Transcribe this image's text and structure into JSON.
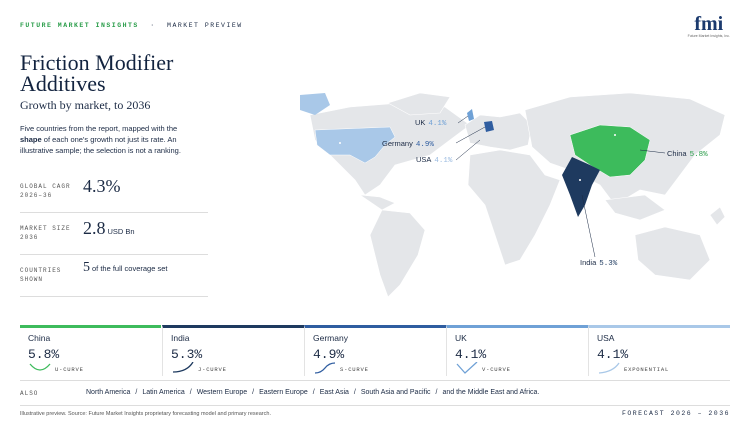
{
  "header": {
    "brand": "FUTURE MARKET INSIGHTS",
    "separator": "·",
    "section": "MARKET PREVIEW",
    "logo": "fmi",
    "logo_sub": "Future Market Insights, Inc."
  },
  "title": "Friction Modifier Additives",
  "subtitle": "Growth by market, to 2036",
  "intro": {
    "before": "Five countries from the report, mapped with the",
    "emphasis": "shape",
    "after": "of each one's growth not just its rate. An illustrative sample; the selection is not a ranking."
  },
  "stats": [
    {
      "label": [
        "GLOBAL CAGR",
        "2026–36"
      ],
      "value": "4.3%"
    },
    {
      "label": [
        "MARKET SIZE",
        "2036"
      ],
      "value": "2.8",
      "unit": "USD Bn"
    },
    {
      "label": [
        "COUNTRIES",
        "SHOWN"
      ],
      "value": "5",
      "unit": "of the full coverage set"
    }
  ],
  "map_labels": [
    {
      "country": "UK",
      "rate": "4.1%"
    },
    {
      "country": "Germany",
      "rate": "4.9%"
    },
    {
      "country": "USA",
      "rate": "4.1%"
    },
    {
      "country": "China",
      "rate": "5.8%"
    },
    {
      "country": "India",
      "rate": "5.3%"
    }
  ],
  "cards": [
    {
      "country": "China",
      "rate": "5.8%",
      "shape": "U-CURVE"
    },
    {
      "country": "India",
      "rate": "5.3%",
      "shape": "J-CURVE"
    },
    {
      "country": "Germany",
      "rate": "4.9%",
      "shape": "S-CURVE"
    },
    {
      "country": "UK",
      "rate": "4.1%",
      "shape": "V-CURVE"
    },
    {
      "country": "USA",
      "rate": "4.1%",
      "shape": "EXPONENTIAL"
    }
  ],
  "also": {
    "label": "ALSO",
    "separator": "/",
    "regions": [
      "North America",
      "Latin America",
      "Western Europe",
      "Eastern Europe",
      "East Asia",
      "South Asia and Pacific",
      "and the Middle East and Africa."
    ]
  },
  "footer": {
    "source": "Illustrative preview. Source: Future Market Insights proprietary forecasting model and primary research.",
    "forecast": "FORECAST 2026 – 2036"
  }
}
